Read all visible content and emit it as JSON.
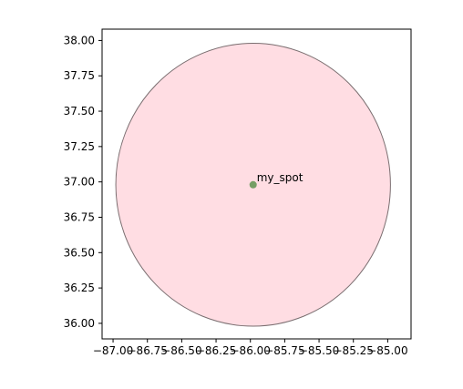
{
  "chart_data": {
    "type": "scatter",
    "title": "",
    "xlabel": "",
    "ylabel": "",
    "xlim": [
      -87.08,
      -84.83
    ],
    "ylim": [
      35.89,
      38.08
    ],
    "xticks": [
      -87.0,
      -86.75,
      -86.5,
      -86.25,
      -86.0,
      -85.75,
      -85.5,
      -85.25,
      -85.0
    ],
    "xtick_labels": [
      "−87.00",
      "−86.75",
      "−86.50",
      "−86.25",
      "−86.00",
      "−85.75",
      "−85.50",
      "−85.25",
      "−85.00"
    ],
    "yticks": [
      36.0,
      36.25,
      36.5,
      36.75,
      37.0,
      37.25,
      37.5,
      37.75,
      38.0
    ],
    "ytick_labels": [
      "36.00",
      "36.25",
      "36.50",
      "36.75",
      "37.00",
      "37.25",
      "37.50",
      "37.75",
      "38.00"
    ],
    "grid": false,
    "legend": "none",
    "circle": {
      "center_x": -85.98,
      "center_y": 36.98,
      "radius": 1.0,
      "fill": "#ffdde3",
      "edge": "#7a6e70"
    },
    "points": [
      {
        "x": -85.98,
        "y": 36.98,
        "label": "my_spot",
        "color": "#6e9a5e"
      }
    ]
  }
}
